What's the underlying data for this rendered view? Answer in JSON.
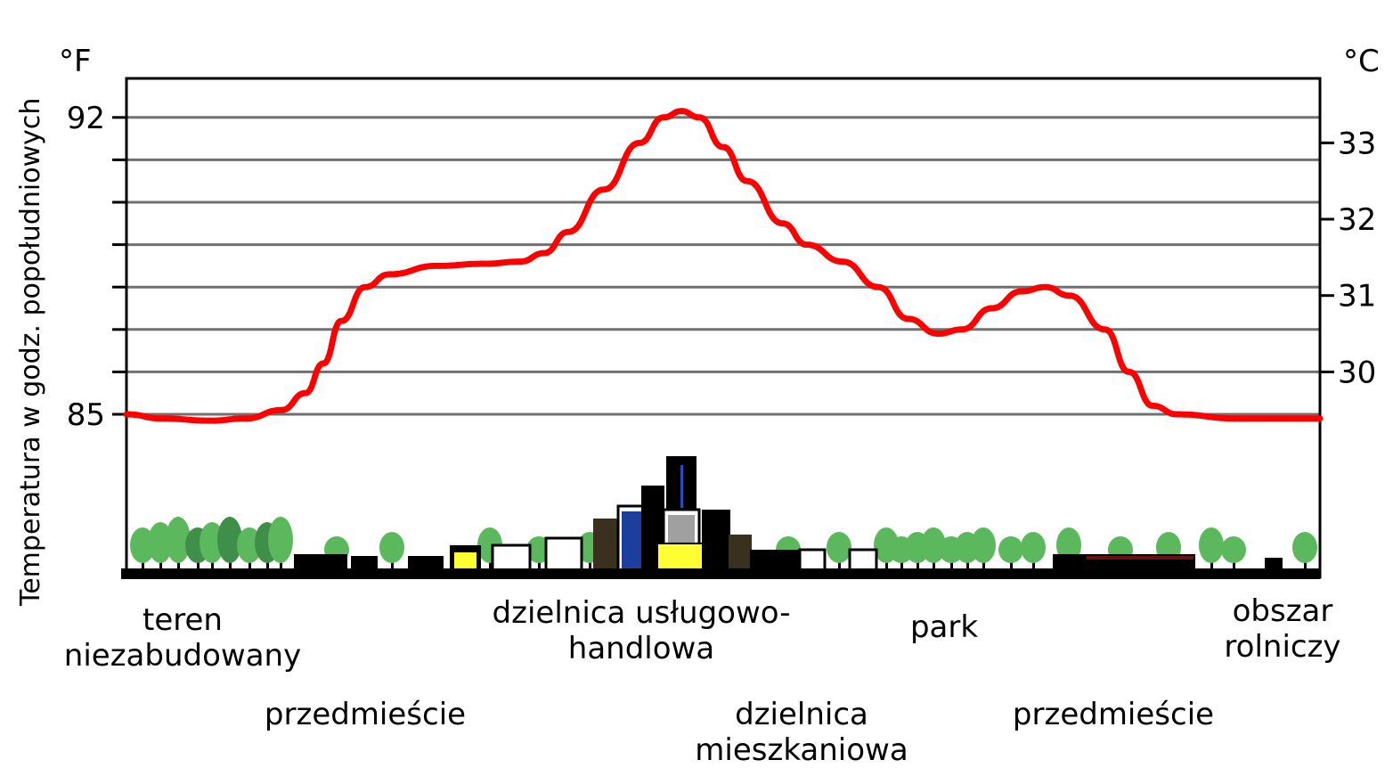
{
  "chart_data": {
    "type": "line",
    "ylabel": "Temperatura w godz. popołudniowych",
    "y_left_unit": "°F",
    "y_right_unit": "°C",
    "ylim_f": [
      85.0,
      92.0
    ],
    "y_left_ticks": [
      {
        "value": 85,
        "label": "85"
      },
      {
        "value": 92,
        "label": "92"
      }
    ],
    "y_left_minor_ticks": [
      85,
      86,
      87,
      88,
      89,
      90,
      91,
      92
    ],
    "y_right_ticks": [
      {
        "value": 30,
        "label": "30"
      },
      {
        "value": 31,
        "label": "31"
      },
      {
        "value": 32,
        "label": "32"
      },
      {
        "value": 33,
        "label": "33"
      }
    ],
    "grid": true,
    "line_color": "#ff0000",
    "zones": [
      {
        "label": "teren niezabudowany"
      },
      {
        "label": "przedmieście"
      },
      {
        "label": "dzielnica usługowo-handlowa"
      },
      {
        "label": "dzielnica mieszkaniowa"
      },
      {
        "label": "park"
      },
      {
        "label": "przedmieście"
      },
      {
        "label": "obszar rolniczy"
      }
    ],
    "series": [
      {
        "values_f": [
          [
            0.0,
            85.0
          ],
          [
            0.03,
            84.9
          ],
          [
            0.07,
            84.85
          ],
          [
            0.1,
            84.9
          ],
          [
            0.13,
            85.1
          ],
          [
            0.15,
            85.5
          ],
          [
            0.165,
            86.2
          ],
          [
            0.18,
            87.2
          ],
          [
            0.2,
            88.0
          ],
          [
            0.22,
            88.3
          ],
          [
            0.26,
            88.5
          ],
          [
            0.3,
            88.55
          ],
          [
            0.33,
            88.6
          ],
          [
            0.35,
            88.8
          ],
          [
            0.37,
            89.3
          ],
          [
            0.4,
            90.3
          ],
          [
            0.43,
            91.4
          ],
          [
            0.45,
            92.0
          ],
          [
            0.465,
            92.15
          ],
          [
            0.48,
            92.0
          ],
          [
            0.5,
            91.3
          ],
          [
            0.52,
            90.5
          ],
          [
            0.55,
            89.5
          ],
          [
            0.57,
            89.0
          ],
          [
            0.6,
            88.6
          ],
          [
            0.63,
            88.0
          ],
          [
            0.655,
            87.25
          ],
          [
            0.68,
            86.9
          ],
          [
            0.7,
            87.0
          ],
          [
            0.725,
            87.5
          ],
          [
            0.75,
            87.9
          ],
          [
            0.77,
            88.0
          ],
          [
            0.79,
            87.8
          ],
          [
            0.82,
            87.0
          ],
          [
            0.84,
            86.0
          ],
          [
            0.86,
            85.2
          ],
          [
            0.88,
            85.0
          ],
          [
            0.93,
            84.9
          ],
          [
            1.0,
            84.9
          ]
        ]
      }
    ],
    "x_labels": [
      {
        "text": "teren niezabudowany"
      },
      {
        "text": "przedmieście"
      },
      {
        "text": "dzielnica usługowo-handlowa"
      },
      {
        "text": "dzielnica mieszkaniowa"
      },
      {
        "text": "park"
      },
      {
        "text": "przedmieście"
      },
      {
        "text": "obszar rolniczy"
      }
    ]
  }
}
